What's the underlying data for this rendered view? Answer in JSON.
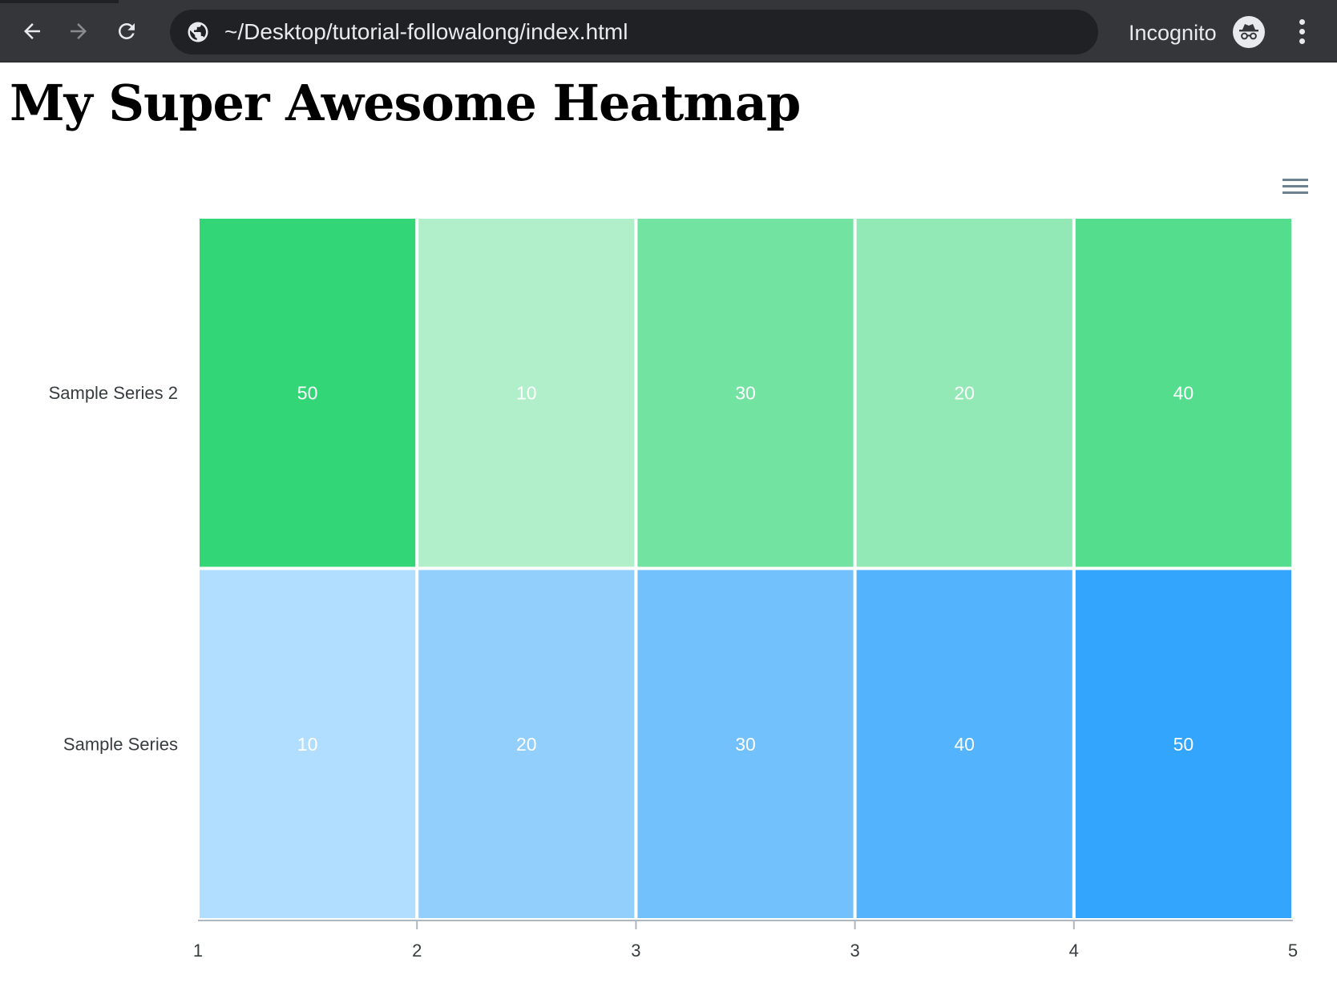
{
  "browser": {
    "url": "~/Desktop/tutorial-followalong/index.html",
    "mode_label": "Incognito",
    "icons": {
      "back": "back-arrow-icon",
      "forward": "forward-arrow-icon",
      "reload": "reload-icon",
      "site_info": "globe-icon",
      "incognito": "incognito-icon",
      "menu": "kebab-menu-icon"
    }
  },
  "page": {
    "title": "My Super Awesome Heatmap"
  },
  "chart_menu_icon": "hamburger-menu-icon",
  "chart_data": {
    "type": "heatmap",
    "x_tick_labels": [
      "1",
      "2",
      "3",
      "3",
      "4",
      "5"
    ],
    "categories": [
      "1",
      "2",
      "3",
      "4",
      "5"
    ],
    "series": [
      {
        "name": "Sample Series 2",
        "values": [
          50,
          10,
          30,
          20,
          40
        ],
        "color": "#00CC55"
      },
      {
        "name": "Sample Series",
        "values": [
          10,
          20,
          30,
          40,
          50
        ],
        "color": "#008FFB"
      }
    ],
    "value_range": [
      0,
      50
    ],
    "data_labels": true,
    "data_label_color": "#ffffff",
    "legend": "none",
    "grid": false
  }
}
